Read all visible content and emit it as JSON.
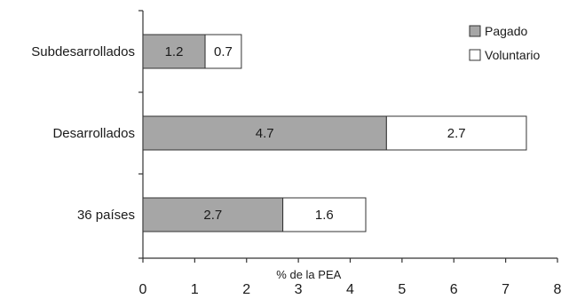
{
  "chart_data": {
    "type": "bar",
    "orientation": "horizontal",
    "stacked": true,
    "categories": [
      "Subdesarrollados",
      "Desarrollados",
      "36 países"
    ],
    "series": [
      {
        "name": "Pagado",
        "values": [
          1.2,
          4.7,
          2.7
        ],
        "color": "#a6a6a6"
      },
      {
        "name": "Voluntario",
        "values": [
          0.7,
          2.7,
          1.6
        ],
        "color": "#ffffff"
      }
    ],
    "xlabel": "% de la PEA",
    "ylabel": "",
    "title": "",
    "xlim": [
      0,
      8
    ],
    "xticks": [
      0,
      1,
      2,
      3,
      4,
      5,
      6,
      7,
      8
    ],
    "legend": "top-right",
    "grid": false
  }
}
